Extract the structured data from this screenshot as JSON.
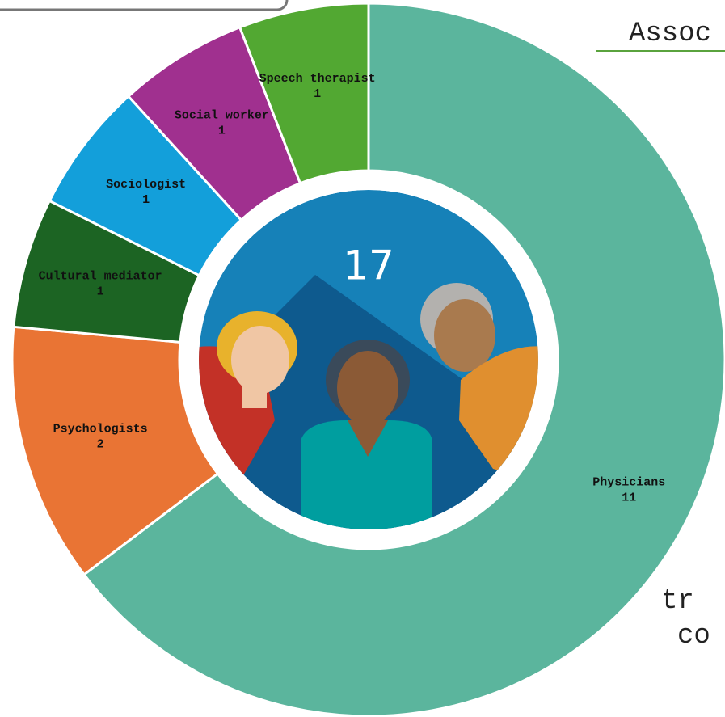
{
  "chart_data": {
    "type": "donut",
    "categories": [
      "Physicians",
      "Psychologists",
      "Cultural mediator",
      "Sociologist",
      "Social worker",
      "Speech therapist"
    ],
    "values": [
      11,
      2,
      1,
      1,
      1,
      1
    ],
    "colors": [
      "#5bb59d",
      "#e97434",
      "#1c6423",
      "#139fda",
      "#a0308f",
      "#52a832"
    ],
    "center_value": 17,
    "background_text": [
      "Assoc",
      "tr",
      "co"
    ]
  }
}
